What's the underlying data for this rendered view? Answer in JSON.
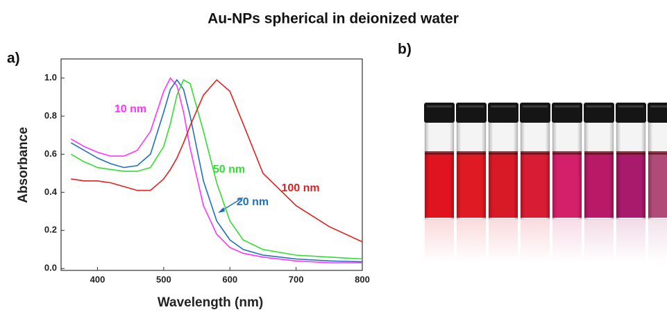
{
  "title": "Au-NPs spherical in deionized water",
  "panel_labels": [
    "a)",
    "b)"
  ],
  "chart_data": {
    "type": "line",
    "xlabel": "Wavelength (nm)",
    "ylabel": "Absorbance",
    "x": [
      360,
      380,
      400,
      420,
      440,
      460,
      480,
      500,
      510,
      520,
      530,
      540,
      560,
      580,
      600,
      620,
      650,
      700,
      750,
      800
    ],
    "series": [
      {
        "name": "10 nm",
        "color": "#ff33ff",
        "values": [
          0.68,
          0.64,
          0.61,
          0.59,
          0.59,
          0.62,
          0.72,
          0.93,
          1.0,
          0.96,
          0.82,
          0.63,
          0.33,
          0.18,
          0.11,
          0.08,
          0.06,
          0.04,
          0.03,
          0.03
        ]
      },
      {
        "name": "20 nm",
        "color": "#1f6fbf",
        "values": [
          0.66,
          0.62,
          0.58,
          0.55,
          0.53,
          0.54,
          0.6,
          0.82,
          0.94,
          0.99,
          0.94,
          0.8,
          0.46,
          0.25,
          0.15,
          0.1,
          0.07,
          0.05,
          0.04,
          0.035
        ]
      },
      {
        "name": "50 nm",
        "color": "#33dd33",
        "values": [
          0.6,
          0.56,
          0.53,
          0.52,
          0.51,
          0.51,
          0.53,
          0.64,
          0.76,
          0.91,
          0.99,
          0.97,
          0.72,
          0.45,
          0.25,
          0.15,
          0.1,
          0.07,
          0.06,
          0.05
        ]
      },
      {
        "name": "100 nm",
        "color": "#e02020",
        "values": [
          0.47,
          0.46,
          0.46,
          0.45,
          0.43,
          0.41,
          0.41,
          0.47,
          0.52,
          0.58,
          0.66,
          0.75,
          0.91,
          0.99,
          0.93,
          0.76,
          0.5,
          0.33,
          0.22,
          0.14
        ]
      }
    ],
    "xlim": [
      345,
      800
    ],
    "ylim": [
      -0.01,
      1.1
    ],
    "xticks": [
      400,
      500,
      600,
      700,
      800
    ],
    "yticks": [
      {
        "value": 0,
        "label": "0.0"
      },
      0.2,
      0.4,
      0.6,
      0.8,
      {
        "value": 1,
        "label": "1.0"
      }
    ],
    "grid": false
  }
}
